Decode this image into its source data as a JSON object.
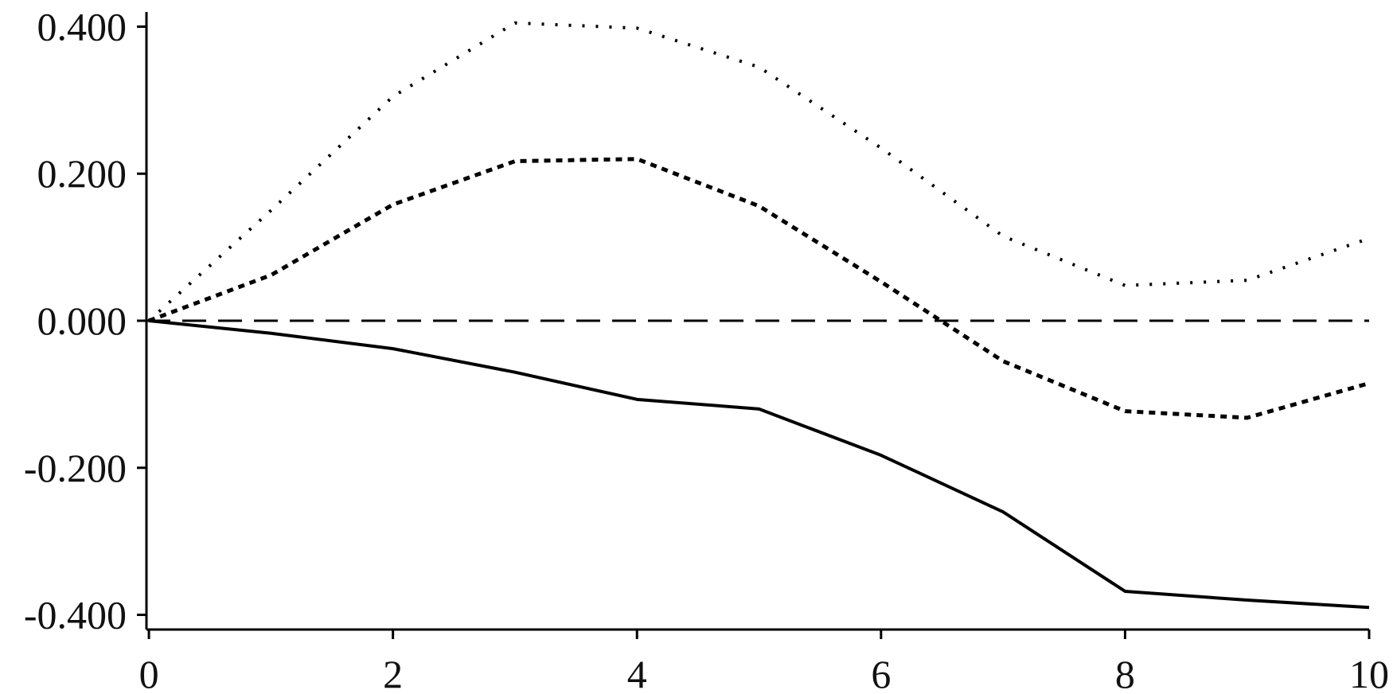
{
  "chart_data": {
    "type": "line",
    "title": "",
    "xlabel": "",
    "ylabel": "",
    "x": [
      0,
      1,
      2,
      3,
      4,
      5,
      6,
      7,
      8,
      9,
      10
    ],
    "xlim": [
      -0.02,
      10.0
    ],
    "ylim": [
      -0.42,
      0.42
    ],
    "x_ticks": [
      0,
      2,
      4,
      6,
      8,
      10
    ],
    "x_tick_labels": [
      "0",
      "2",
      "4",
      "6",
      "8",
      "10"
    ],
    "y_ticks": [
      0.4,
      0.2,
      0.0,
      -0.2,
      -0.4
    ],
    "y_tick_labels": [
      "0.400",
      "0.200",
      "0.000",
      "-0.200",
      "-0.400"
    ],
    "grid": false,
    "legend": "none",
    "series": [
      {
        "style": "solid",
        "color": "#000000",
        "values": [
          0.0,
          -0.017,
          -0.038,
          -0.07,
          -0.107,
          -0.12,
          -0.183,
          -0.26,
          -0.368,
          -0.38,
          -0.39
        ]
      },
      {
        "style": "dashed",
        "color": "#000000",
        "values": [
          0.0,
          0.062,
          0.158,
          0.217,
          0.22,
          0.156,
          0.053,
          -0.055,
          -0.123,
          -0.132,
          -0.085
        ]
      },
      {
        "style": "dotted",
        "color": "#000000",
        "values": [
          0.0,
          0.15,
          0.305,
          0.405,
          0.398,
          0.345,
          0.235,
          0.115,
          0.048,
          0.055,
          0.112
        ]
      }
    ],
    "reference_line": {
      "y": 0.0,
      "style": "long-dash",
      "color": "#000000"
    }
  }
}
